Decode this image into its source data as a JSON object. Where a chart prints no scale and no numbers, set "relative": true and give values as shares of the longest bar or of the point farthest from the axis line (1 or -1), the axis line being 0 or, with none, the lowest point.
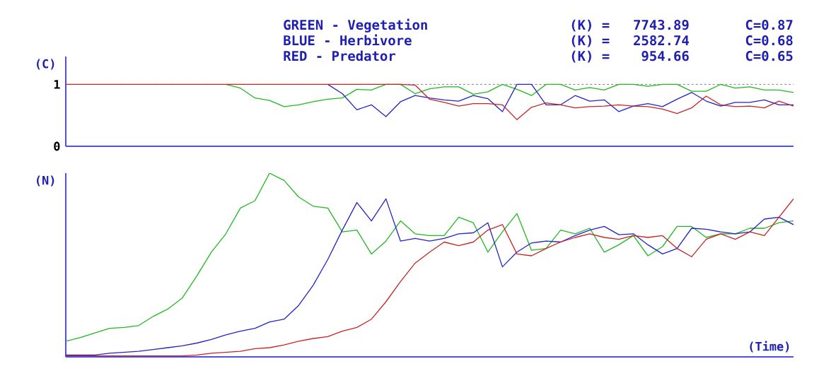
{
  "chart_data": [
    {
      "type": "line",
      "ylabel": "(C)",
      "ylim": [
        0,
        1.45
      ],
      "yticks": [
        0,
        1
      ],
      "tick_labels": "y",
      "categories": [
        null,
        null,
        null,
        null,
        null,
        null,
        null,
        null,
        null,
        null,
        null,
        null,
        null,
        null,
        null,
        null,
        null,
        null,
        null,
        null,
        null,
        null,
        null,
        null,
        null,
        null,
        null,
        null,
        null,
        null,
        null,
        null,
        null,
        null,
        null,
        null,
        null,
        null,
        null,
        null,
        null,
        null,
        null,
        null,
        null,
        null,
        null,
        null,
        null,
        null,
        null
      ],
      "annotations": [
        "GREEN - Vegetation",
        "(K) =",
        "7743.89",
        "C=0.87",
        "BLUE  - Herbivore",
        "(K) =",
        "2582.74",
        "C=0.68",
        "RED   - Predator",
        "(K) =",
        "954.66",
        "C=0.65"
      ],
      "ref_lines": [
        {
          "axis": "y",
          "value": 1,
          "color": "#808080",
          "line_style": "dashed"
        }
      ],
      "series": [
        {
          "color": "#22b822",
          "values": [
            null,
            null,
            null,
            null,
            null,
            null,
            null,
            null,
            null,
            null,
            null,
            1,
            0.94,
            0.78,
            0.74,
            0.64,
            0.67,
            0.72,
            0.76,
            0.78,
            0.92,
            0.91,
            1,
            1,
            0.85,
            0.93,
            0.96,
            0.96,
            0.84,
            0.88,
            1,
            0.92,
            0.82,
            1,
            1,
            0.91,
            0.95,
            0.91,
            1,
            1,
            0.97,
            1,
            1,
            0.89,
            0.89,
            1,
            0.94,
            0.96,
            0.91,
            0.91,
            0.87
          ]
        },
        {
          "color": "#2424c8",
          "values": [
            null,
            null,
            null,
            null,
            null,
            null,
            null,
            null,
            null,
            null,
            null,
            null,
            null,
            null,
            null,
            null,
            null,
            null,
            1,
            0.85,
            0.59,
            0.67,
            0.48,
            0.72,
            0.82,
            0.78,
            0.75,
            0.73,
            0.82,
            0.77,
            0.56,
            1,
            1,
            0.67,
            0.67,
            0.82,
            0.73,
            0.75,
            0.56,
            0.65,
            0.69,
            0.64,
            0.76,
            0.87,
            0.73,
            0.65,
            0.71,
            0.71,
            0.75,
            0.67,
            0.67
          ]
        },
        {
          "color": "#c82424",
          "values": [
            1,
            1,
            1,
            1,
            1,
            1,
            1,
            1,
            1,
            1,
            1,
            1,
            1,
            1,
            1,
            1,
            1,
            1,
            1,
            1,
            1,
            1,
            1,
            1,
            0.99,
            0.76,
            0.71,
            0.65,
            0.69,
            0.69,
            0.67,
            0.43,
            0.63,
            0.7,
            0.67,
            0.62,
            0.64,
            0.65,
            0.67,
            0.65,
            0.64,
            0.6,
            0.53,
            0.62,
            0.81,
            0.67,
            0.64,
            0.65,
            0.62,
            0.73,
            0.65
          ]
        }
      ]
    },
    {
      "type": "line",
      "relative": true,
      "ylabel": "(N)",
      "xlabel": "(Time)",
      "tick_labels": false,
      "categories": [
        null,
        null,
        null,
        null,
        null,
        null,
        null,
        null,
        null,
        null,
        null,
        null,
        null,
        null,
        null,
        null,
        null,
        null,
        null,
        null,
        null,
        null,
        null,
        null,
        null,
        null,
        null,
        null,
        null,
        null,
        null,
        null,
        null,
        null,
        null,
        null,
        null,
        null,
        null,
        null,
        null,
        null,
        null,
        null,
        null,
        null,
        null,
        null,
        null,
        null,
        null
      ],
      "series": [
        {
          "color": "#22b822",
          "values": [
            0.085,
            0.105,
            0.13,
            0.155,
            0.16,
            0.17,
            0.22,
            0.26,
            0.32,
            0.44,
            0.57,
            0.67,
            0.81,
            0.85,
            1,
            0.96,
            0.87,
            0.82,
            0.81,
            0.68,
            0.69,
            0.56,
            0.63,
            0.74,
            0.67,
            0.66,
            0.66,
            0.76,
            0.73,
            0.57,
            0.68,
            0.78,
            0.58,
            0.59,
            0.69,
            0.67,
            0.7,
            0.57,
            0.61,
            0.66,
            0.55,
            0.6,
            0.71,
            0.71,
            0.65,
            0.67,
            0.67,
            0.7,
            0.7,
            0.73,
            0.74
          ]
        },
        {
          "color": "#2424c8",
          "values": [
            0.01,
            0.01,
            0.01,
            0.02,
            0.025,
            0.03,
            0.04,
            0.05,
            0.06,
            0.075,
            0.095,
            0.12,
            0.14,
            0.155,
            0.19,
            0.205,
            0.28,
            0.39,
            0.53,
            0.69,
            0.84,
            0.74,
            0.86,
            0.63,
            0.645,
            0.63,
            0.645,
            0.67,
            0.675,
            0.73,
            0.49,
            0.57,
            0.62,
            0.63,
            0.625,
            0.66,
            0.69,
            0.71,
            0.665,
            0.67,
            0.61,
            0.56,
            0.59,
            0.7,
            0.695,
            0.68,
            0.67,
            0.68,
            0.75,
            0.76,
            0.72
          ]
        },
        {
          "color": "#c82424",
          "values": [
            0.005,
            0.005,
            0.005,
            0.005,
            0.005,
            0.005,
            0.005,
            0.005,
            0.005,
            0.01,
            0.02,
            0.025,
            0.03,
            0.045,
            0.05,
            0.065,
            0.085,
            0.1,
            0.11,
            0.14,
            0.16,
            0.205,
            0.3,
            0.41,
            0.51,
            0.57,
            0.625,
            0.605,
            0.625,
            0.69,
            0.72,
            0.56,
            0.55,
            0.59,
            0.625,
            0.65,
            0.67,
            0.65,
            0.64,
            0.66,
            0.65,
            0.66,
            0.59,
            0.545,
            0.64,
            0.67,
            0.64,
            0.68,
            0.66,
            0.76,
            0.86
          ]
        }
      ]
    }
  ]
}
